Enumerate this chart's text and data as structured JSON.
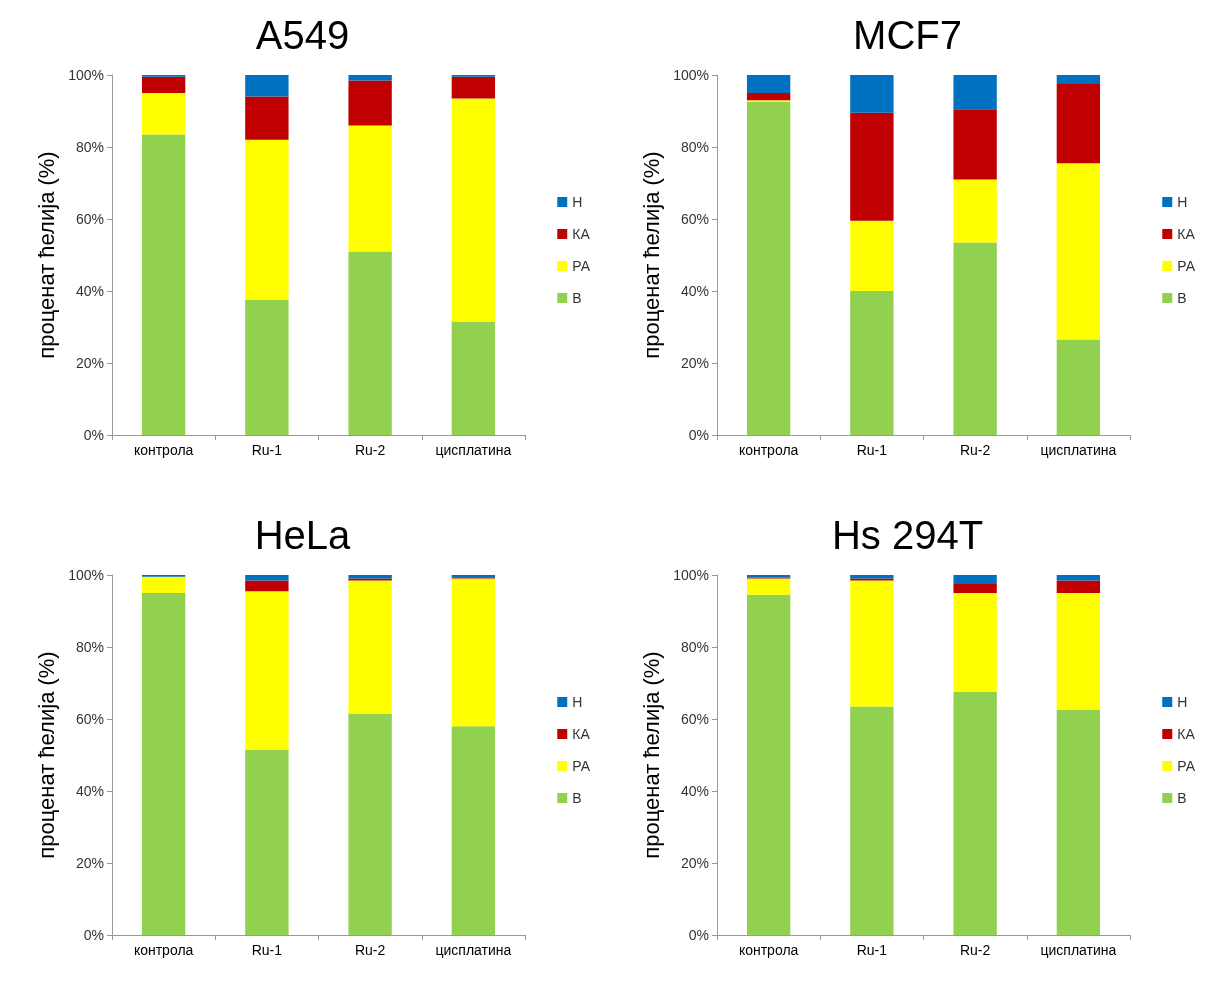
{
  "chart_data": [
    {
      "type": "bar",
      "title": "A549",
      "ylabel": "проценат ћелија (%)",
      "categories": [
        "контрола",
        "Ru-1",
        "Ru-2",
        "цисплатина"
      ],
      "stacked": true,
      "legend": "right",
      "grid": false,
      "ylim": [
        0,
        100
      ],
      "yticks": [
        {
          "value": 0,
          "label": "0%"
        },
        {
          "value": 20,
          "label": "20%"
        },
        {
          "value": 40,
          "label": "40%"
        },
        {
          "value": 60,
          "label": "60%"
        },
        {
          "value": 80,
          "label": "80%"
        },
        {
          "value": 100,
          "label": "100%"
        }
      ],
      "series": [
        {
          "name": "В",
          "color": "#92d050",
          "values": [
            83.5,
            37.5,
            51,
            31.5
          ]
        },
        {
          "name": "РА",
          "color": "#ffff00",
          "values": [
            11.5,
            44.5,
            35,
            62
          ]
        },
        {
          "name": "КА",
          "color": "#c00000",
          "values": [
            4.5,
            12,
            12.5,
            6
          ]
        },
        {
          "name": "Н",
          "color": "#0070c0",
          "values": [
            0.5,
            6,
            1.5,
            0.5
          ]
        }
      ]
    },
    {
      "type": "bar",
      "title": "MCF7",
      "ylabel": "проценат ћелија (%)",
      "categories": [
        "контрола",
        "Ru-1",
        "Ru-2",
        "цисплатина"
      ],
      "stacked": true,
      "legend": "right",
      "grid": false,
      "ylim": [
        0,
        100
      ],
      "yticks": [
        {
          "value": 0,
          "label": "0%"
        },
        {
          "value": 20,
          "label": "20%"
        },
        {
          "value": 40,
          "label": "40%"
        },
        {
          "value": 60,
          "label": "60%"
        },
        {
          "value": 80,
          "label": "80%"
        },
        {
          "value": 100,
          "label": "100%"
        }
      ],
      "series": [
        {
          "name": "В",
          "color": "#92d050",
          "values": [
            92.5,
            40,
            53.5,
            26.5
          ]
        },
        {
          "name": "РА",
          "color": "#ffff00",
          "values": [
            0.5,
            19.5,
            17.5,
            49
          ]
        },
        {
          "name": "КА",
          "color": "#c00000",
          "values": [
            2,
            30,
            19.5,
            22
          ]
        },
        {
          "name": "Н",
          "color": "#0070c0",
          "values": [
            5,
            10.5,
            9.5,
            2.5
          ]
        }
      ]
    },
    {
      "type": "bar",
      "title": "HeLa",
      "ylabel": "проценат ћелија (%)",
      "categories": [
        "контрола",
        "Ru-1",
        "Ru-2",
        "цисплатина"
      ],
      "stacked": true,
      "legend": "right",
      "grid": false,
      "ylim": [
        0,
        100
      ],
      "yticks": [
        {
          "value": 0,
          "label": "0%"
        },
        {
          "value": 20,
          "label": "20%"
        },
        {
          "value": 40,
          "label": "40%"
        },
        {
          "value": 60,
          "label": "60%"
        },
        {
          "value": 80,
          "label": "80%"
        },
        {
          "value": 100,
          "label": "100%"
        }
      ],
      "series": [
        {
          "name": "В",
          "color": "#92d050",
          "values": [
            95,
            51.5,
            61.5,
            58
          ]
        },
        {
          "name": "РА",
          "color": "#ffff00",
          "values": [
            4.5,
            44,
            37,
            41
          ]
        },
        {
          "name": "КА",
          "color": "#c00000",
          "values": [
            0,
            3,
            0.5,
            0.4
          ]
        },
        {
          "name": "Н",
          "color": "#0070c0",
          "values": [
            0.5,
            1.5,
            1,
            0.6
          ]
        }
      ]
    },
    {
      "type": "bar",
      "title": "Hs 294T",
      "ylabel": "проценат ћелија (%)",
      "categories": [
        "контрола",
        "Ru-1",
        "Ru-2",
        "цисплатина"
      ],
      "stacked": true,
      "legend": "right",
      "grid": false,
      "ylim": [
        0,
        100
      ],
      "yticks": [
        {
          "value": 0,
          "label": "0%"
        },
        {
          "value": 20,
          "label": "20%"
        },
        {
          "value": 40,
          "label": "40%"
        },
        {
          "value": 60,
          "label": "60%"
        },
        {
          "value": 80,
          "label": "80%"
        },
        {
          "value": 100,
          "label": "100%"
        }
      ],
      "series": [
        {
          "name": "В",
          "color": "#92d050",
          "values": [
            94.5,
            63.5,
            67.5,
            62.5
          ]
        },
        {
          "name": "РА",
          "color": "#ffff00",
          "values": [
            4.5,
            35,
            27.5,
            32.5
          ]
        },
        {
          "name": "КА",
          "color": "#c00000",
          "values": [
            0.3,
            0.5,
            2.5,
            3.5
          ]
        },
        {
          "name": "Н",
          "color": "#0070c0",
          "values": [
            0.7,
            1,
            2.5,
            1.5
          ]
        }
      ]
    }
  ]
}
